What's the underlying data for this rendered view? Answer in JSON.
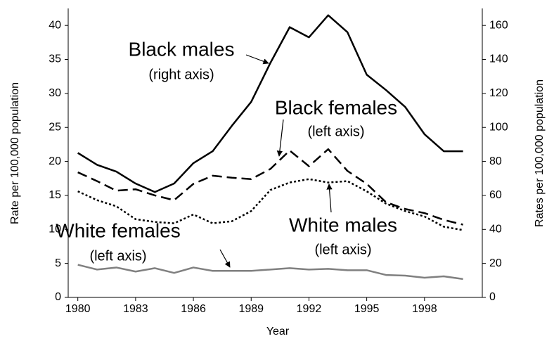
{
  "chart_data": {
    "type": "line",
    "xlabel": "Year",
    "ylabel": "Rate per 100,000 population",
    "y2label": "Rates per 100,000 population",
    "x": [
      1980,
      1981,
      1982,
      1983,
      1984,
      1985,
      1986,
      1987,
      1988,
      1989,
      1990,
      1991,
      1992,
      1993,
      1994,
      1995,
      1996,
      1997,
      1998,
      1999,
      2000
    ],
    "xlim": [
      1979.5,
      2001
    ],
    "xticks": [
      1980,
      1983,
      1986,
      1989,
      1992,
      1995,
      1998
    ],
    "ylim": [
      0,
      42.5
    ],
    "yticks": [
      0,
      5,
      10,
      15,
      20,
      25,
      30,
      35,
      40
    ],
    "y2lim": [
      0,
      170
    ],
    "y2ticks": [
      0,
      20,
      40,
      60,
      80,
      100,
      120,
      140,
      160
    ],
    "grid": false,
    "series": [
      {
        "name": "Black males",
        "note": "(right axis)",
        "axis": "y2",
        "color": "#000000",
        "style": "solid",
        "values": [
          85,
          78,
          74,
          67,
          62,
          67,
          79,
          86,
          101,
          115,
          138,
          159,
          153,
          166,
          156,
          131,
          122,
          112,
          96,
          86,
          86
        ]
      },
      {
        "name": "Black females",
        "note": "(left axis)",
        "color": "#000000",
        "style": "dashed",
        "values": [
          18.4,
          17.1,
          15.7,
          15.9,
          15.0,
          14.3,
          16.7,
          17.9,
          17.6,
          17.4,
          18.9,
          21.6,
          19.3,
          21.8,
          18.6,
          16.7,
          14.0,
          13.0,
          12.4,
          11.4,
          10.7
        ]
      },
      {
        "name": "White males",
        "note": "(left axis)",
        "color": "#000000",
        "style": "dotted",
        "values": [
          15.6,
          14.3,
          13.4,
          11.5,
          11.1,
          10.9,
          12.2,
          10.9,
          11.2,
          12.7,
          15.8,
          16.9,
          17.4,
          16.9,
          17.1,
          15.6,
          13.8,
          12.7,
          11.9,
          10.4,
          9.9
        ]
      },
      {
        "name": "White females",
        "note": "(left axis)",
        "color": "#808080",
        "style": "solid",
        "values": [
          4.8,
          4.1,
          4.4,
          3.8,
          4.3,
          3.6,
          4.4,
          3.9,
          3.9,
          3.9,
          4.1,
          4.3,
          4.1,
          4.2,
          4.0,
          4.0,
          3.3,
          3.2,
          2.9,
          3.1,
          2.7
        ]
      }
    ]
  }
}
